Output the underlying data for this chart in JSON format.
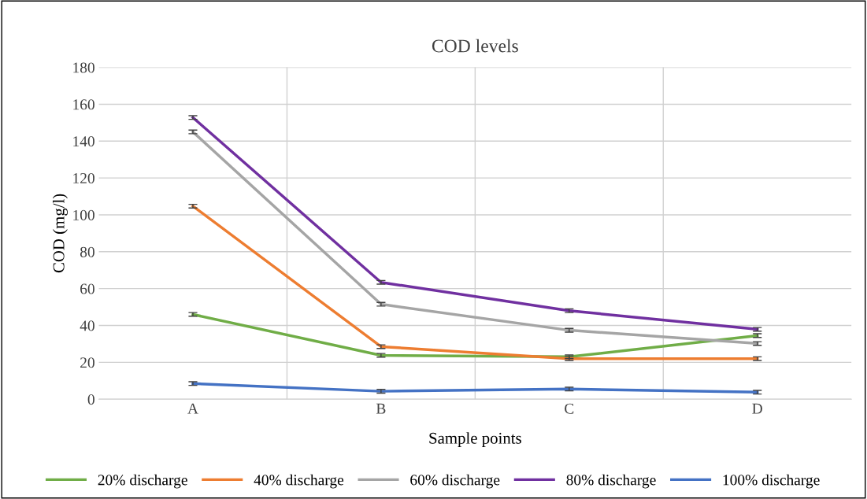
{
  "chart_data": {
    "type": "line",
    "title": "COD levels",
    "xlabel": "Sample points",
    "ylabel": "COD (mg/l)",
    "categories": [
      "A",
      "B",
      "C",
      "D"
    ],
    "series": [
      {
        "name": "20% discharge",
        "color": "#70ad47",
        "values": [
          46,
          23.8,
          23,
          34.5
        ],
        "errors": [
          1,
          1,
          1,
          1
        ]
      },
      {
        "name": "40% discharge",
        "color": "#ed7d31",
        "values": [
          104.7,
          28.5,
          22,
          22
        ],
        "errors": [
          1,
          1,
          1,
          1
        ]
      },
      {
        "name": "60% discharge",
        "color": "#a5a5a5",
        "values": [
          145,
          51.5,
          37.4,
          30.2
        ],
        "errors": [
          1,
          1,
          1,
          1
        ]
      },
      {
        "name": "80% discharge",
        "color": "#7030a0",
        "values": [
          152.8,
          63.4,
          48,
          37.9
        ],
        "errors": [
          1,
          1,
          1,
          1
        ]
      },
      {
        "name": "100% discharge",
        "color": "#4472c4",
        "values": [
          8.5,
          4.3,
          5.5,
          3.8
        ],
        "errors": [
          1,
          1,
          1,
          1
        ]
      }
    ],
    "ylim": [
      0,
      180
    ],
    "yticks": [
      0,
      20,
      40,
      60,
      80,
      100,
      120,
      140,
      160,
      180
    ],
    "grid": true,
    "legend": "bottom",
    "marker": "none",
    "line_style": "solid"
  }
}
